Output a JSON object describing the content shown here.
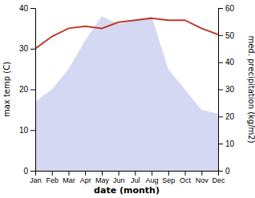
{
  "chart_data": {
    "type": "line",
    "categories": [
      "Jan",
      "Feb",
      "Mar",
      "Apr",
      "May",
      "Jun",
      "Jul",
      "Aug",
      "Sep",
      "Oct",
      "Nov",
      "Dec"
    ],
    "series": [
      {
        "type": "area",
        "color": "#b0b8e8",
        "values": [
          17,
          20,
          25,
          32,
          38,
          36,
          37,
          38,
          25,
          20,
          15,
          14
        ]
      },
      {
        "type": "line",
        "color": "#c0392b",
        "values": [
          30,
          33,
          35,
          35.5,
          35,
          36.5,
          37,
          37.5,
          37,
          37,
          35,
          33.5
        ]
      }
    ],
    "xlabel": "date (month)",
    "ylabel": "max temp (C)",
    "y2label": "med. precipitation (kg/m2)",
    "ylim": [
      0,
      40
    ],
    "yticks": [
      0,
      10,
      20,
      30,
      40
    ],
    "y2lim": [
      0,
      60
    ],
    "y2ticks": [
      0,
      10,
      20,
      30,
      40,
      50,
      60
    ],
    "grid": false
  }
}
